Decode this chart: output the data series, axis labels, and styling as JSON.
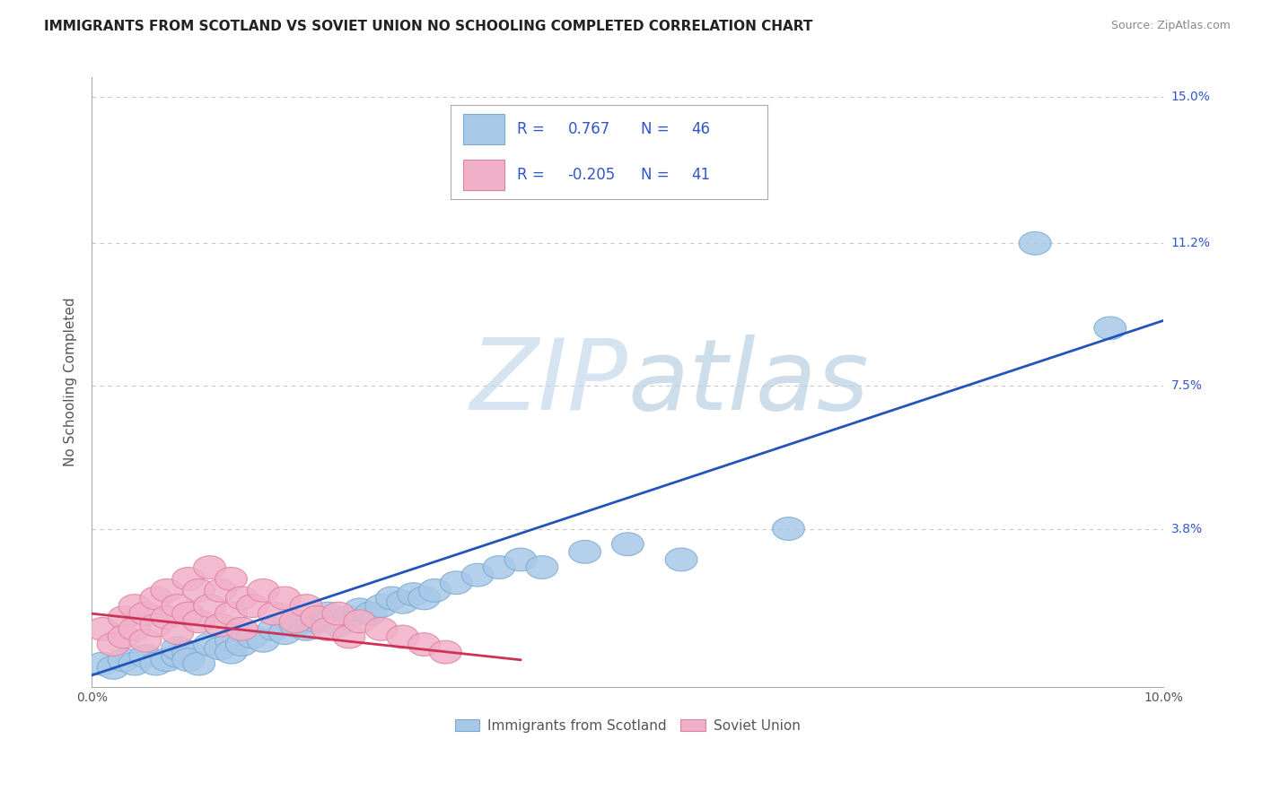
{
  "title": "IMMIGRANTS FROM SCOTLAND VS SOVIET UNION NO SCHOOLING COMPLETED CORRELATION CHART",
  "source": "Source: ZipAtlas.com",
  "ylabel": "No Schooling Completed",
  "watermark_zip": "ZIP",
  "watermark_atlas": "atlas",
  "xlim": [
    0.0,
    0.1
  ],
  "ylim": [
    -0.003,
    0.155
  ],
  "ytick_positions": [
    0.0,
    0.038,
    0.075,
    0.112,
    0.15
  ],
  "ytick_labels": [
    "",
    "3.8%",
    "7.5%",
    "11.2%",
    "15.0%"
  ],
  "xtick_positions": [
    0.0,
    0.02,
    0.04,
    0.06,
    0.08,
    0.1
  ],
  "xtick_labels": [
    "0.0%",
    "",
    "",
    "",
    "",
    "10.0%"
  ],
  "scotland_color": "#a8c8e8",
  "soviet_color": "#f0b0c8",
  "scotland_edge_color": "#7aaad0",
  "soviet_edge_color": "#e080a0",
  "scotland_line_color": "#2255bb",
  "soviet_line_color": "#cc3355",
  "legend_scotland_R": "0.767",
  "legend_scotland_N": "46",
  "legend_soviet_R": "-0.205",
  "legend_soviet_N": "41",
  "scotland_x": [
    0.001,
    0.002,
    0.003,
    0.004,
    0.005,
    0.006,
    0.007,
    0.008,
    0.008,
    0.009,
    0.009,
    0.01,
    0.011,
    0.012,
    0.013,
    0.013,
    0.014,
    0.015,
    0.016,
    0.017,
    0.018,
    0.019,
    0.02,
    0.021,
    0.022,
    0.023,
    0.024,
    0.025,
    0.026,
    0.027,
    0.028,
    0.029,
    0.03,
    0.031,
    0.032,
    0.034,
    0.036,
    0.038,
    0.04,
    0.042,
    0.046,
    0.05,
    0.055,
    0.065,
    0.088,
    0.095
  ],
  "scotland_y": [
    0.003,
    0.002,
    0.004,
    0.003,
    0.005,
    0.003,
    0.004,
    0.005,
    0.007,
    0.006,
    0.004,
    0.003,
    0.008,
    0.007,
    0.009,
    0.006,
    0.008,
    0.01,
    0.009,
    0.012,
    0.011,
    0.013,
    0.012,
    0.014,
    0.016,
    0.013,
    0.015,
    0.017,
    0.016,
    0.018,
    0.02,
    0.019,
    0.021,
    0.02,
    0.022,
    0.024,
    0.026,
    0.028,
    0.03,
    0.028,
    0.032,
    0.034,
    0.03,
    0.038,
    0.112,
    0.09
  ],
  "soviet_x": [
    0.001,
    0.002,
    0.003,
    0.003,
    0.004,
    0.004,
    0.005,
    0.005,
    0.006,
    0.006,
    0.007,
    0.007,
    0.008,
    0.008,
    0.009,
    0.009,
    0.01,
    0.01,
    0.011,
    0.011,
    0.012,
    0.012,
    0.013,
    0.013,
    0.014,
    0.014,
    0.015,
    0.016,
    0.017,
    0.018,
    0.019,
    0.02,
    0.021,
    0.022,
    0.023,
    0.024,
    0.025,
    0.027,
    0.029,
    0.031,
    0.033
  ],
  "soviet_y": [
    0.012,
    0.008,
    0.015,
    0.01,
    0.018,
    0.012,
    0.016,
    0.009,
    0.02,
    0.013,
    0.022,
    0.015,
    0.018,
    0.011,
    0.025,
    0.016,
    0.022,
    0.014,
    0.028,
    0.018,
    0.022,
    0.013,
    0.025,
    0.016,
    0.02,
    0.012,
    0.018,
    0.022,
    0.016,
    0.02,
    0.014,
    0.018,
    0.015,
    0.012,
    0.016,
    0.01,
    0.014,
    0.012,
    0.01,
    0.008,
    0.006
  ],
  "background_color": "#ffffff",
  "grid_color": "#c8c8c8",
  "legend_text_color": "#3355cc",
  "axis_color": "#aaaaaa",
  "title_color": "#222222",
  "label_color": "#555555"
}
